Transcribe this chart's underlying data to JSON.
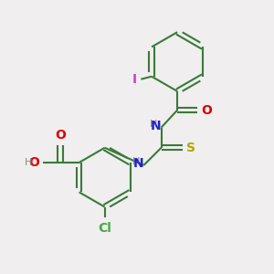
{
  "bg_color": "#f0eeee",
  "bond_color": "#3a7a3a",
  "atom_colors": {
    "I": "#cc44cc",
    "O": "#dd0000",
    "N": "#2222cc",
    "S": "#aaaa00",
    "Cl": "#44aa44",
    "H": "#888888",
    "C": "#3a7a3a"
  }
}
